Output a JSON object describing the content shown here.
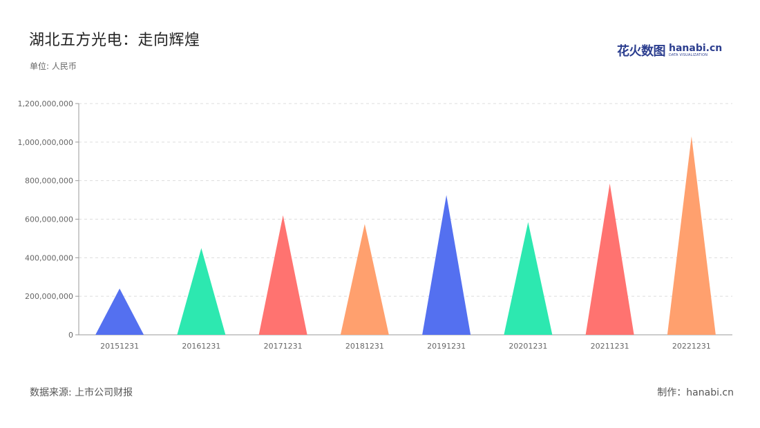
{
  "header": {
    "title": "湖北五方光电：走向辉煌",
    "unit": "单位: 人民币"
  },
  "logo": {
    "cn": "花火数图",
    "en": "hanabi.cn",
    "sub": "DATA VISUALIZATION",
    "color": "#2c3e8f"
  },
  "footer": {
    "source": "数据来源: 上市公司财报",
    "credit": "制作：hanabi.cn"
  },
  "chart_data": {
    "type": "bar",
    "bar_shape": "triangle",
    "categories": [
      "20151231",
      "20161231",
      "20171231",
      "20181231",
      "20191231",
      "20201231",
      "20211231",
      "20221231"
    ],
    "values": [
      240000000,
      450000000,
      620000000,
      575000000,
      725000000,
      585000000,
      785000000,
      1030000000
    ],
    "colors": [
      "#5470f0",
      "#2de8b0",
      "#ff7370",
      "#ffa06e",
      "#5470f0",
      "#2de8b0",
      "#ff7370",
      "#ffa06e"
    ],
    "ylim": [
      0,
      1200000000
    ],
    "yticks": [
      0,
      200000000,
      400000000,
      600000000,
      800000000,
      1000000000,
      1200000000
    ],
    "ytick_labels": [
      "0",
      "200,000,000",
      "400,000,000",
      "600,000,000",
      "800,000,000",
      "1,000,000,000",
      "1,200,000,000"
    ],
    "grid": true,
    "legend": "none"
  }
}
